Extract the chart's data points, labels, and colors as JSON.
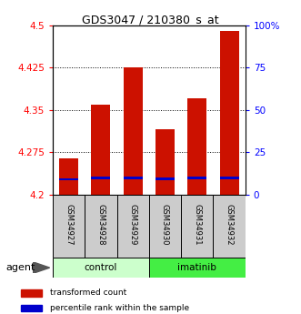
{
  "title": "GDS3047 / 210380_s_at",
  "samples": [
    "GSM34927",
    "GSM34928",
    "GSM34929",
    "GSM34930",
    "GSM34931",
    "GSM34932"
  ],
  "red_values": [
    4.265,
    4.36,
    4.425,
    4.315,
    4.37,
    4.49
  ],
  "blue_values": [
    4.225,
    4.228,
    4.228,
    4.226,
    4.228,
    4.228
  ],
  "ymin": 4.2,
  "ymax": 4.5,
  "yticks": [
    4.2,
    4.275,
    4.35,
    4.425,
    4.5
  ],
  "ytick_labels": [
    "4.2",
    "4.275",
    "4.35",
    "4.425",
    "4.5"
  ],
  "right_yticks": [
    0,
    25,
    50,
    75,
    100
  ],
  "right_ytick_labels": [
    "0",
    "25",
    "50",
    "75",
    "100%"
  ],
  "group_labels": [
    "control",
    "imatinib"
  ],
  "control_color": "#ccffcc",
  "imatinib_color": "#44ee44",
  "bar_color": "#cc1100",
  "blue_color": "#0000cc",
  "gray_color": "#cccccc",
  "legend_red": "transformed count",
  "legend_blue": "percentile rank within the sample"
}
